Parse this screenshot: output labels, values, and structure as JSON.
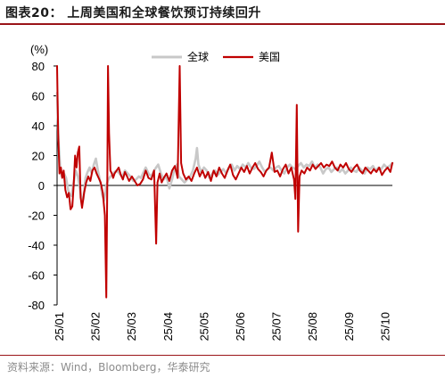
{
  "header": {
    "title": "图表20：  上周美国和全球餐饮预订持续回升"
  },
  "footer": {
    "source": "资料来源：Wind，Bloomberg，华泰研究"
  },
  "chart_data": {
    "type": "line",
    "unit_label": "(%)",
    "ylim": [
      -80,
      80
    ],
    "y_ticks": [
      80,
      60,
      40,
      20,
      0,
      -20,
      -40,
      -60,
      -80
    ],
    "x_tick_labels": [
      "25/01",
      "25/02",
      "25/03",
      "25/04",
      "25/05",
      "25/06",
      "25/07",
      "25/08",
      "25/09",
      "25/10"
    ],
    "legend_position": "top",
    "series": [
      {
        "name": "全球",
        "color": "#c8c8c8",
        "points": [
          [
            0.0,
            62
          ],
          [
            0.2,
            30
          ],
          [
            0.45,
            12
          ],
          [
            0.7,
            6
          ],
          [
            1.0,
            8
          ],
          [
            1.3,
            5
          ],
          [
            1.6,
            -3
          ],
          [
            1.8,
            -6
          ],
          [
            2.1,
            -7
          ],
          [
            2.4,
            2
          ],
          [
            2.7,
            10
          ],
          [
            3.0,
            6
          ],
          [
            3.3,
            -2
          ],
          [
            3.6,
            -12
          ],
          [
            3.8,
            -9
          ],
          [
            4.1,
            5
          ],
          [
            4.4,
            9
          ],
          [
            4.7,
            12
          ],
          [
            5.0,
            8
          ],
          [
            5.3,
            14
          ],
          [
            5.6,
            18
          ],
          [
            5.9,
            10
          ],
          [
            6.2,
            3
          ],
          [
            6.5,
            -6
          ],
          [
            6.8,
            -10
          ],
          [
            7.1,
            0
          ],
          [
            7.4,
            4
          ],
          [
            7.7,
            6
          ],
          [
            8.0,
            7
          ],
          [
            8.3,
            9
          ],
          [
            8.6,
            10
          ],
          [
            9.0,
            8
          ],
          [
            9.4,
            6
          ],
          [
            9.8,
            10
          ],
          [
            10.2,
            8
          ],
          [
            10.6,
            6
          ],
          [
            11.0,
            3
          ],
          [
            11.4,
            4
          ],
          [
            11.8,
            6
          ],
          [
            12.1,
            5
          ],
          [
            12.4,
            8
          ],
          [
            12.8,
            12
          ],
          [
            13.2,
            8
          ],
          [
            13.6,
            6
          ],
          [
            14.0,
            10
          ],
          [
            14.3,
            12
          ],
          [
            14.6,
            14
          ],
          [
            15.0,
            8
          ],
          [
            15.4,
            4
          ],
          [
            15.8,
            6
          ],
          [
            16.2,
            -2
          ],
          [
            16.6,
            4
          ],
          [
            17.0,
            12
          ],
          [
            17.3,
            14
          ],
          [
            17.6,
            6
          ],
          [
            18.0,
            4
          ],
          [
            18.4,
            2
          ],
          [
            18.8,
            4
          ],
          [
            19.2,
            6
          ],
          [
            19.6,
            10
          ],
          [
            20.0,
            18
          ],
          [
            20.2,
            25
          ],
          [
            20.4,
            14
          ],
          [
            20.8,
            9
          ],
          [
            21.2,
            12
          ],
          [
            21.6,
            10
          ],
          [
            22.0,
            5
          ],
          [
            22.4,
            8
          ],
          [
            22.8,
            10
          ],
          [
            23.2,
            7
          ],
          [
            23.6,
            9
          ],
          [
            24.0,
            11
          ],
          [
            24.4,
            8
          ],
          [
            24.8,
            12
          ],
          [
            25.2,
            14
          ],
          [
            25.6,
            10
          ],
          [
            26.0,
            13
          ],
          [
            26.4,
            11
          ],
          [
            26.8,
            14
          ],
          [
            27.2,
            12
          ],
          [
            27.6,
            15
          ],
          [
            28.0,
            12
          ],
          [
            28.4,
            11
          ],
          [
            28.8,
            13
          ],
          [
            29.2,
            16
          ],
          [
            29.6,
            12
          ],
          [
            30.0,
            9
          ],
          [
            30.4,
            11
          ],
          [
            30.8,
            12
          ],
          [
            31.2,
            10
          ],
          [
            31.6,
            12
          ],
          [
            32.0,
            13
          ],
          [
            32.4,
            10
          ],
          [
            32.8,
            8
          ],
          [
            33.2,
            12
          ],
          [
            33.6,
            14
          ],
          [
            34.0,
            12
          ],
          [
            34.4,
            11
          ],
          [
            34.8,
            13
          ],
          [
            35.2,
            15
          ],
          [
            35.6,
            12
          ],
          [
            36.0,
            14
          ],
          [
            36.4,
            13
          ],
          [
            36.8,
            16
          ],
          [
            37.2,
            12
          ],
          [
            37.6,
            14
          ],
          [
            38.0,
            12
          ],
          [
            38.4,
            8
          ],
          [
            38.8,
            11
          ],
          [
            39.2,
            12
          ],
          [
            39.6,
            9
          ],
          [
            40.0,
            11
          ],
          [
            40.4,
            12
          ],
          [
            40.8,
            9
          ],
          [
            41.2,
            11
          ],
          [
            41.6,
            8
          ],
          [
            42.0,
            10
          ],
          [
            42.4,
            12
          ],
          [
            42.8,
            10
          ],
          [
            43.2,
            9
          ],
          [
            43.6,
            12
          ],
          [
            44.0,
            10
          ],
          [
            44.4,
            8
          ],
          [
            44.8,
            12
          ],
          [
            45.2,
            11
          ],
          [
            45.6,
            13
          ],
          [
            46.0,
            10
          ],
          [
            46.4,
            12
          ],
          [
            46.8,
            11
          ],
          [
            47.2,
            14
          ],
          [
            47.6,
            12
          ],
          [
            48.0,
            13
          ],
          [
            48.4,
            15
          ]
        ]
      },
      {
        "name": "美国",
        "color": "#c00000",
        "points": [
          [
            0.0,
            80
          ],
          [
            0.15,
            35
          ],
          [
            0.35,
            8
          ],
          [
            0.55,
            12
          ],
          [
            0.75,
            5
          ],
          [
            0.95,
            10
          ],
          [
            1.2,
            -3
          ],
          [
            1.45,
            -8
          ],
          [
            1.7,
            -5
          ],
          [
            1.95,
            -16
          ],
          [
            2.2,
            -14
          ],
          [
            2.4,
            0
          ],
          [
            2.6,
            20
          ],
          [
            2.8,
            12
          ],
          [
            3.0,
            22
          ],
          [
            3.2,
            26
          ],
          [
            3.4,
            -8
          ],
          [
            3.6,
            -15
          ],
          [
            3.9,
            -5
          ],
          [
            4.2,
            2
          ],
          [
            4.5,
            6
          ],
          [
            4.8,
            3
          ],
          [
            5.1,
            10
          ],
          [
            5.4,
            12
          ],
          [
            5.7,
            8
          ],
          [
            6.0,
            5
          ],
          [
            6.3,
            2
          ],
          [
            6.6,
            -5
          ],
          [
            6.9,
            -20
          ],
          [
            7.1,
            -75
          ],
          [
            7.25,
            0
          ],
          [
            7.35,
            80
          ],
          [
            7.5,
            35
          ],
          [
            7.7,
            10
          ],
          [
            7.9,
            8
          ],
          [
            8.1,
            5
          ],
          [
            8.3,
            8
          ],
          [
            8.6,
            10
          ],
          [
            8.9,
            12
          ],
          [
            9.2,
            7
          ],
          [
            9.5,
            4
          ],
          [
            9.8,
            9
          ],
          [
            10.1,
            6
          ],
          [
            10.4,
            3
          ],
          [
            10.8,
            6
          ],
          [
            11.2,
            3
          ],
          [
            11.6,
            0
          ],
          [
            12.0,
            1
          ],
          [
            12.4,
            4
          ],
          [
            12.8,
            10
          ],
          [
            13.2,
            5
          ],
          [
            13.6,
            4
          ],
          [
            14.0,
            10
          ],
          [
            14.3,
            -39
          ],
          [
            14.5,
            2
          ],
          [
            14.8,
            8
          ],
          [
            15.1,
            2
          ],
          [
            15.4,
            5
          ],
          [
            15.8,
            8
          ],
          [
            16.2,
            3
          ],
          [
            16.6,
            10
          ],
          [
            17.0,
            13
          ],
          [
            17.4,
            5
          ],
          [
            17.7,
            80
          ],
          [
            17.9,
            15
          ],
          [
            18.2,
            8
          ],
          [
            18.6,
            4
          ],
          [
            19.0,
            6
          ],
          [
            19.4,
            3
          ],
          [
            19.8,
            8
          ],
          [
            20.2,
            12
          ],
          [
            20.6,
            6
          ],
          [
            21.0,
            10
          ],
          [
            21.4,
            5
          ],
          [
            21.8,
            9
          ],
          [
            22.2,
            3
          ],
          [
            22.6,
            10
          ],
          [
            23.0,
            6
          ],
          [
            23.4,
            12
          ],
          [
            23.8,
            8
          ],
          [
            24.2,
            5
          ],
          [
            24.6,
            10
          ],
          [
            25.0,
            14
          ],
          [
            25.4,
            7
          ],
          [
            25.8,
            4
          ],
          [
            26.2,
            8
          ],
          [
            26.6,
            12
          ],
          [
            27.0,
            9
          ],
          [
            27.4,
            13
          ],
          [
            27.8,
            8
          ],
          [
            28.2,
            12
          ],
          [
            28.6,
            15
          ],
          [
            29.0,
            11
          ],
          [
            29.4,
            9
          ],
          [
            29.8,
            6
          ],
          [
            30.2,
            10
          ],
          [
            30.6,
            12
          ],
          [
            31.0,
            22
          ],
          [
            31.4,
            9
          ],
          [
            31.8,
            10
          ],
          [
            32.2,
            6
          ],
          [
            32.6,
            11
          ],
          [
            33.0,
            14
          ],
          [
            33.4,
            8
          ],
          [
            33.8,
            12
          ],
          [
            34.2,
            4
          ],
          [
            34.4,
            -9
          ],
          [
            34.6,
            54
          ],
          [
            34.8,
            -31
          ],
          [
            35.0,
            6
          ],
          [
            35.3,
            10
          ],
          [
            35.7,
            8
          ],
          [
            36.1,
            12
          ],
          [
            36.5,
            10
          ],
          [
            36.9,
            14
          ],
          [
            37.3,
            11
          ],
          [
            37.7,
            13
          ],
          [
            38.1,
            15
          ],
          [
            38.5,
            12
          ],
          [
            38.9,
            14
          ],
          [
            39.3,
            13
          ],
          [
            39.7,
            16
          ],
          [
            40.1,
            12
          ],
          [
            40.5,
            10
          ],
          [
            40.9,
            14
          ],
          [
            41.3,
            12
          ],
          [
            41.7,
            15
          ],
          [
            42.1,
            11
          ],
          [
            42.5,
            9
          ],
          [
            42.9,
            12
          ],
          [
            43.3,
            14
          ],
          [
            43.7,
            10
          ],
          [
            44.1,
            8
          ],
          [
            44.5,
            12
          ],
          [
            44.9,
            10
          ],
          [
            45.3,
            8
          ],
          [
            45.7,
            11
          ],
          [
            46.1,
            9
          ],
          [
            46.5,
            12
          ],
          [
            46.9,
            7
          ],
          [
            47.3,
            10
          ],
          [
            47.7,
            12
          ],
          [
            48.1,
            9
          ],
          [
            48.4,
            15
          ]
        ]
      }
    ]
  }
}
